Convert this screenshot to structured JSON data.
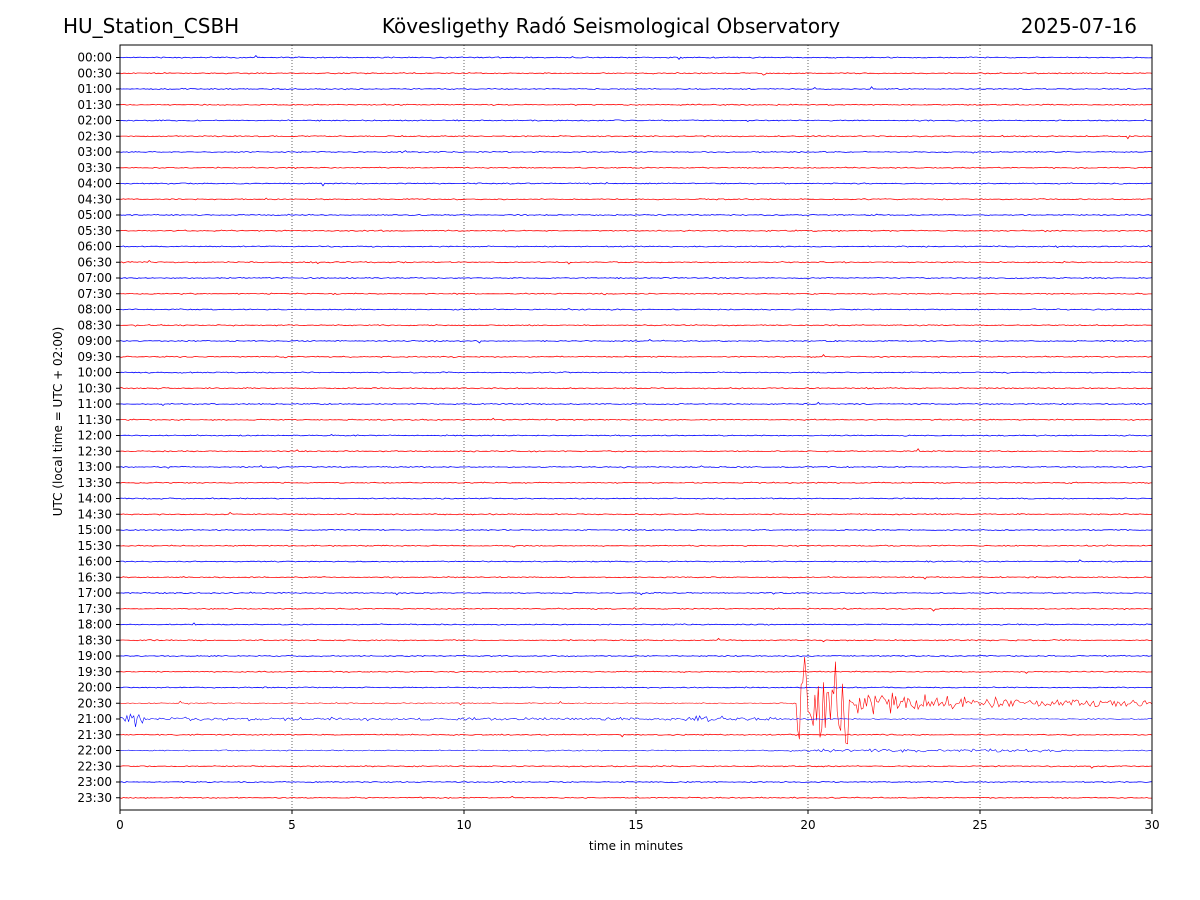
{
  "header": {
    "station": "HU_Station_CSBH",
    "observatory": "Kövesligethy Radó Seismological Observatory",
    "date": "2025-07-16"
  },
  "chart_data": {
    "type": "line",
    "title": "Kövesligethy Radó Seismological Observatory",
    "xlabel": "time in minutes",
    "ylabel": "UTC (local time = UTC + 02:00)",
    "xlim": [
      0,
      30
    ],
    "xticks": [
      0,
      5,
      10,
      15,
      20,
      25,
      30
    ],
    "grid": "vertical dotted lines at 5-minute intervals",
    "series_colors": [
      "#0000ff",
      "#ff0000"
    ],
    "rows": [
      "00:00",
      "00:30",
      "01:00",
      "01:30",
      "02:00",
      "02:30",
      "03:00",
      "03:30",
      "04:00",
      "04:30",
      "05:00",
      "05:30",
      "06:00",
      "06:30",
      "07:00",
      "07:30",
      "08:00",
      "08:30",
      "09:00",
      "09:30",
      "10:00",
      "10:30",
      "11:00",
      "11:30",
      "12:00",
      "12:30",
      "13:00",
      "13:30",
      "14:00",
      "14:30",
      "15:00",
      "15:30",
      "16:00",
      "16:30",
      "17:00",
      "17:30",
      "18:00",
      "18:30",
      "19:00",
      "19:30",
      "20:00",
      "20:30",
      "21:00",
      "21:30",
      "22:00",
      "22:30",
      "23:00",
      "23:30"
    ],
    "events": [
      {
        "row": "20:30",
        "start_min": 19.7,
        "end_min": 30,
        "description": "large earthquake signal, strongest amplitude near 19.8–21 min"
      },
      {
        "row": "21:00",
        "start_min": 0,
        "end_min": 19.7,
        "description": "coda continuation"
      },
      {
        "row": "21:00",
        "start_min": 16.5,
        "end_min": 17.5,
        "description": "secondary burst"
      },
      {
        "row": "22:00",
        "start_min": 19.4,
        "end_min": 27.5,
        "description": "aftershock activity"
      }
    ]
  }
}
